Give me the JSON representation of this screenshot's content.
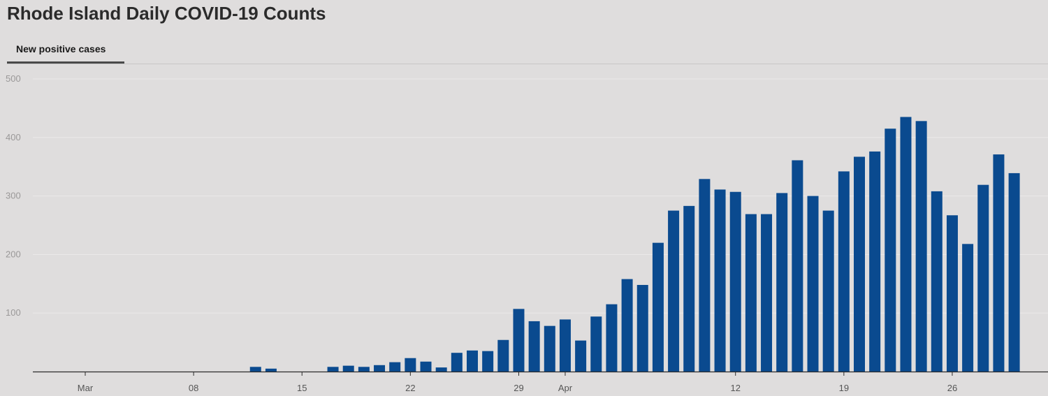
{
  "title": "Rhode Island Daily COVID-19 Counts",
  "tabs": [
    {
      "label": "New positive cases",
      "active": true
    }
  ],
  "colors": {
    "bar": "#0a4a8f",
    "grid": "#ebe9e9",
    "axis": "#2b2b2b",
    "background": "#dfdddd"
  },
  "chart_data": {
    "type": "bar",
    "xaxis_type": "date",
    "x_start": "2020-03-01",
    "x_end": "2020-04-30",
    "ylim": [
      0,
      500
    ],
    "yticks": [
      100,
      200,
      300,
      400,
      500
    ],
    "xticks": [
      {
        "date": "2020-03-01",
        "label": "Mar"
      },
      {
        "date": "2020-03-08",
        "label": "08"
      },
      {
        "date": "2020-03-15",
        "label": "15"
      },
      {
        "date": "2020-03-22",
        "label": "22"
      },
      {
        "date": "2020-03-29",
        "label": "29"
      },
      {
        "date": "2020-04-01",
        "label": "Apr"
      },
      {
        "date": "2020-04-12",
        "label": "12"
      },
      {
        "date": "2020-04-19",
        "label": "19"
      },
      {
        "date": "2020-04-26",
        "label": "26"
      }
    ],
    "grid": true,
    "legend": "none",
    "series": [
      {
        "dates": [
          "2020-03-12",
          "2020-03-13",
          "2020-03-17",
          "2020-03-18",
          "2020-03-19",
          "2020-03-20",
          "2020-03-21",
          "2020-03-22",
          "2020-03-23",
          "2020-03-24",
          "2020-03-25",
          "2020-03-26",
          "2020-03-27",
          "2020-03-28",
          "2020-03-29",
          "2020-03-30",
          "2020-03-31",
          "2020-04-01",
          "2020-04-02",
          "2020-04-03",
          "2020-04-04",
          "2020-04-05",
          "2020-04-06",
          "2020-04-07",
          "2020-04-08",
          "2020-04-09",
          "2020-04-10",
          "2020-04-11",
          "2020-04-12",
          "2020-04-13",
          "2020-04-14",
          "2020-04-15",
          "2020-04-16",
          "2020-04-17",
          "2020-04-18",
          "2020-04-19",
          "2020-04-20",
          "2020-04-21",
          "2020-04-22",
          "2020-04-23",
          "2020-04-24",
          "2020-04-25",
          "2020-04-26",
          "2020-04-27",
          "2020-04-28",
          "2020-04-29",
          "2020-04-30"
        ],
        "values": [
          8,
          5,
          8,
          10,
          8,
          11,
          16,
          23,
          17,
          7,
          32,
          36,
          35,
          54,
          107,
          86,
          78,
          89,
          53,
          94,
          115,
          158,
          148,
          220,
          275,
          283,
          329,
          311,
          307,
          269,
          269,
          305,
          361,
          300,
          275,
          342,
          367,
          376,
          415,
          435,
          428,
          308,
          267,
          218,
          319,
          371,
          339
        ]
      }
    ]
  }
}
